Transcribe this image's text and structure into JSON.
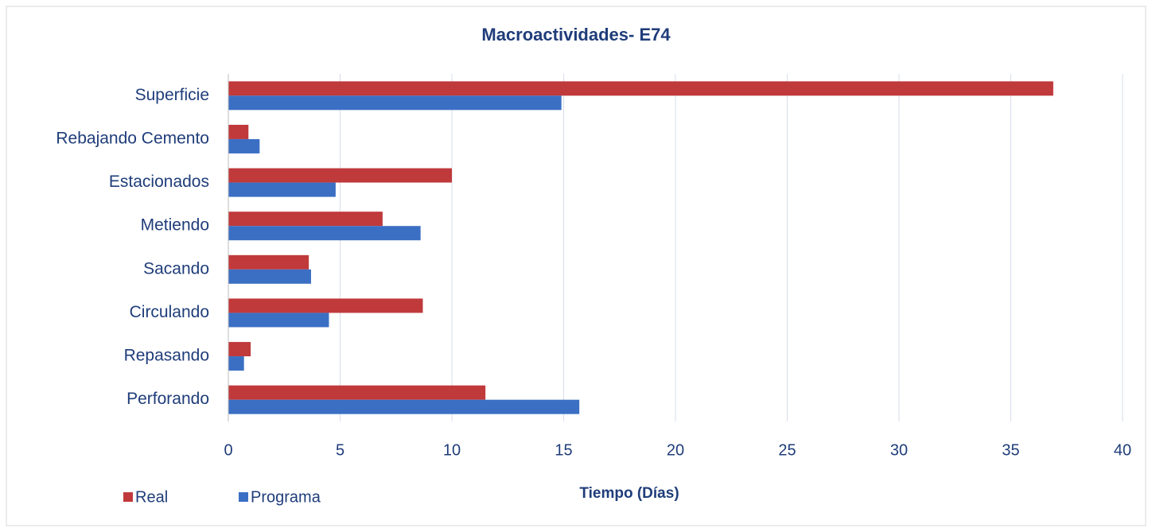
{
  "chart_data": {
    "type": "bar",
    "orientation": "horizontal",
    "title": "Macroactividades- E74",
    "x_label": "Tiempo (Días)",
    "categories": [
      "Superficie",
      "Rebajando Cemento",
      "Estacionados",
      "Metiendo",
      "Sacando",
      "Circulando",
      "Repasando",
      "Perforando"
    ],
    "series": [
      {
        "name": "Real",
        "color": "#c0393b",
        "values": [
          36.9,
          0.9,
          10.0,
          6.9,
          3.6,
          8.7,
          1.0,
          11.5
        ]
      },
      {
        "name": "Programa",
        "color": "#3b6fc4",
        "values": [
          14.9,
          1.4,
          4.8,
          8.6,
          3.7,
          4.5,
          0.7,
          15.7
        ]
      }
    ],
    "xlim": [
      0,
      40
    ],
    "xticks": [
      0,
      5,
      10,
      15,
      20,
      25,
      30,
      35,
      40
    ],
    "grid": true,
    "legend": "bottom-left"
  }
}
